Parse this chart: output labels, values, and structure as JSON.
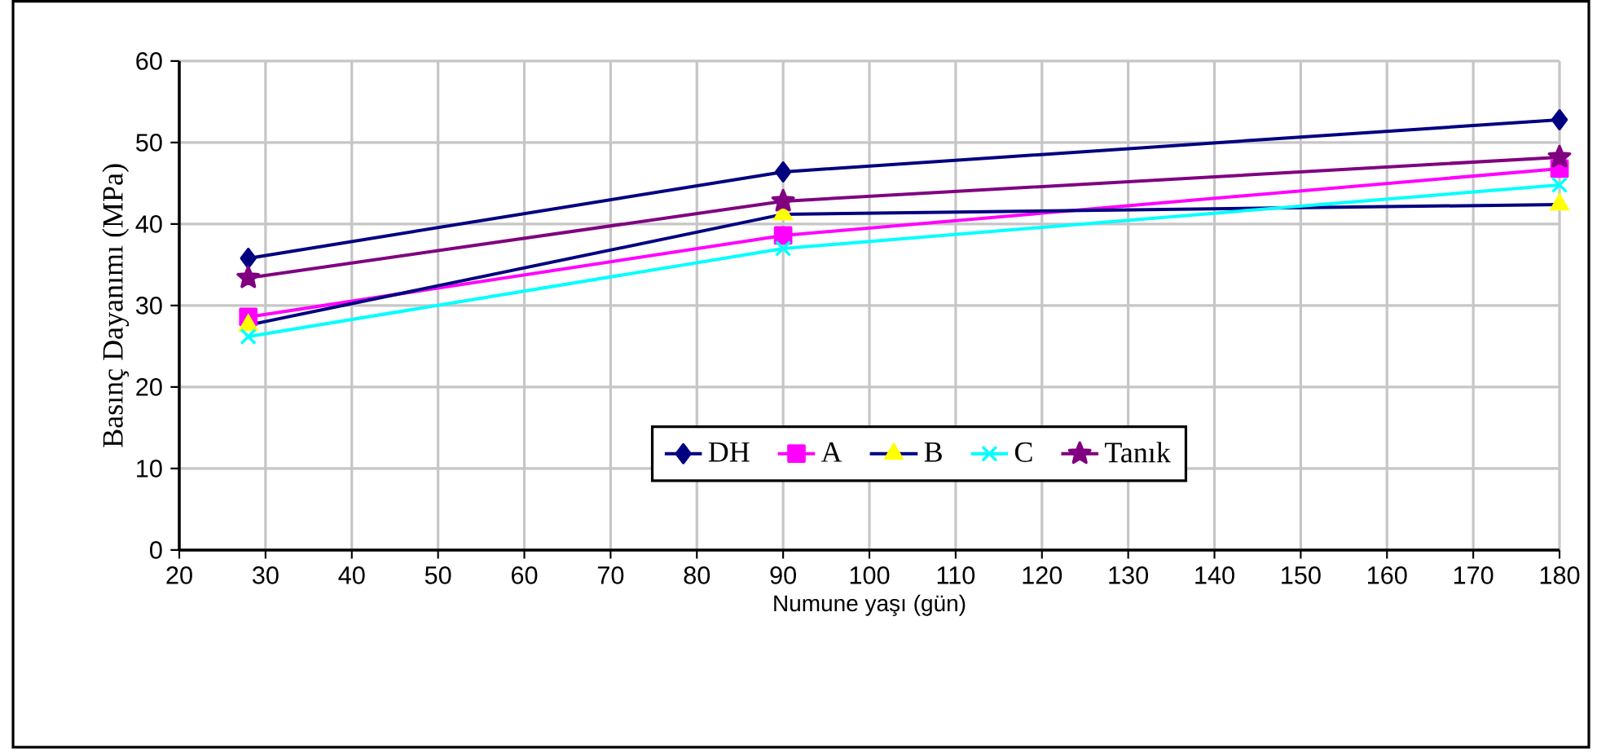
{
  "chart_data": {
    "type": "line",
    "xlabel": "Numune yaşı (gün)",
    "ylabel": "Basınç Dayanımı (MPa)",
    "x": [
      28,
      90,
      180
    ],
    "series": [
      {
        "name": "DH",
        "color": "#000080",
        "marker": "diamond",
        "values": [
          35.8,
          46.4,
          52.8
        ]
      },
      {
        "name": "A",
        "color": "#ff00ff",
        "marker": "square",
        "values": [
          28.6,
          38.6,
          46.8
        ]
      },
      {
        "name": "B",
        "color": "#000080",
        "colors": [
          "#ffff00",
          "#ffff00",
          "#ffff00"
        ],
        "marker": "triangle",
        "values": [
          27.6,
          41.2,
          42.4
        ]
      },
      {
        "name": "C",
        "color": "#00ffff",
        "marker": "cross",
        "values": [
          26.2,
          37.0,
          44.8
        ]
      },
      {
        "name": "Tanık",
        "color": "#800080",
        "marker": "star",
        "values": [
          33.4,
          42.8,
          48.2
        ]
      }
    ],
    "xlim": [
      20,
      180
    ],
    "xticks": [
      20,
      30,
      40,
      50,
      60,
      70,
      80,
      90,
      100,
      110,
      120,
      130,
      140,
      150,
      160,
      170,
      180
    ],
    "ylim": [
      0,
      60
    ],
    "yticks": [
      0,
      10,
      20,
      30,
      40,
      50,
      60
    ],
    "grid": true,
    "legend": "bottom",
    "line_style": "solid"
  }
}
